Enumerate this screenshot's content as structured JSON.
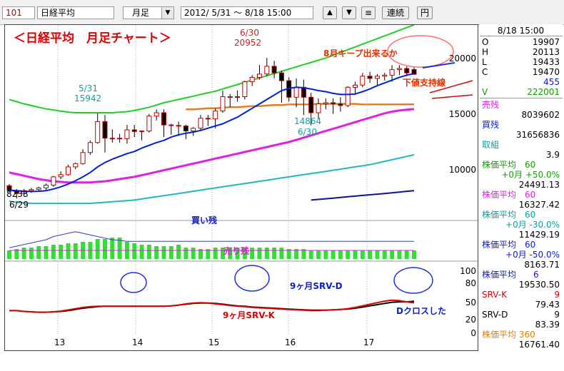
{
  "toolbar": {
    "code": "101",
    "name": "日経平均",
    "period": "月足",
    "range": "2012/ 5/31 ～ 8/18 15:00",
    "btn_up": "▲",
    "btn_down": "▼",
    "btn_menu": "≡",
    "btn_continuous": "連続",
    "btn_yen": "円"
  },
  "annotations": {
    "title": "＜日経平均　月足チャート＞",
    "keep_note": "8月キープ出来るか",
    "support_note": "下値支持線",
    "kaizan": "買い残",
    "urizan": "売り残",
    "srvd": "9ヶ月SRV-D",
    "srvk": "9ヶ月SRV-K",
    "dcross": "Dクロスした"
  },
  "chart_data": {
    "type": "candlestick",
    "x_ticks": [
      "13",
      "14",
      "15",
      "16",
      "17"
    ],
    "y_ticks_main": [
      "20000",
      "15000",
      "10000"
    ],
    "y_ticks_osc": [
      "100",
      "80",
      "50",
      "20",
      "0"
    ],
    "point_labels": [
      {
        "text": "8238",
        "value": 8238
      },
      {
        "text": "6/29",
        "value": "6/29"
      },
      {
        "text": "5/31",
        "value": "5/31"
      },
      {
        "text": "15942",
        "value": 15942
      },
      {
        "text": "6/30",
        "value": "6/30"
      },
      {
        "text": "20952",
        "value": 20952
      },
      {
        "text": "14864",
        "value": 14864
      },
      {
        "text": "6/30",
        "value": "6/30"
      }
    ],
    "candles": [
      [
        9400,
        9550,
        8780,
        8950
      ],
      [
        8950,
        9100,
        8238,
        8700
      ],
      [
        8700,
        9100,
        8600,
        8950
      ],
      [
        8950,
        9200,
        8750,
        9050
      ],
      [
        9050,
        9300,
        8900,
        9200
      ],
      [
        9200,
        9600,
        9000,
        9450
      ],
      [
        9450,
        10300,
        9300,
        10200
      ],
      [
        10200,
        10700,
        10000,
        10400
      ],
      [
        10400,
        11300,
        10300,
        11100
      ],
      [
        11100,
        11500,
        10900,
        11400
      ],
      [
        11400,
        12700,
        11300,
        12400
      ],
      [
        12400,
        13500,
        12200,
        13300
      ],
      [
        13300,
        15942,
        13200,
        15200
      ],
      [
        15200,
        15800,
        12400,
        13700
      ],
      [
        13700,
        14500,
        13300,
        13700
      ],
      [
        13700,
        14100,
        13300,
        13650
      ],
      [
        13650,
        14900,
        13200,
        14450
      ],
      [
        14450,
        14900,
        13800,
        14300
      ],
      [
        14300,
        14400,
        13500,
        14350
      ],
      [
        14350,
        15900,
        14200,
        15700
      ],
      [
        15700,
        16300,
        15300,
        16000
      ],
      [
        16000,
        16300,
        13800,
        14900
      ],
      [
        14900,
        15000,
        14000,
        14850
      ],
      [
        14850,
        15200,
        13900,
        14800
      ],
      [
        14800,
        14900,
        13600,
        14350
      ],
      [
        14350,
        14700,
        13900,
        14600
      ],
      [
        14600,
        15800,
        14400,
        15500
      ],
      [
        15500,
        15800,
        14800,
        15450
      ],
      [
        15450,
        16400,
        14600,
        16150
      ],
      [
        16150,
        18000,
        16000,
        17450
      ],
      [
        17450,
        17700,
        16500,
        17450
      ],
      [
        17450,
        18000,
        17000,
        17450
      ],
      [
        17450,
        18900,
        17200,
        18800
      ],
      [
        18800,
        19400,
        18400,
        19200
      ],
      [
        19200,
        20300,
        19000,
        19500
      ],
      [
        19500,
        20952,
        19300,
        20200
      ],
      [
        20200,
        20700,
        19100,
        19600
      ],
      [
        19600,
        19800,
        16900,
        18900
      ],
      [
        18900,
        19200,
        17000,
        17400
      ],
      [
        17400,
        19100,
        16500,
        18300
      ],
      [
        18300,
        19000,
        15800,
        17400
      ],
      [
        17400,
        17800,
        14864,
        16000
      ],
      [
        16000,
        17300,
        15400,
        16800
      ],
      [
        16800,
        17300,
        16300,
        16900
      ],
      [
        16900,
        17300,
        15900,
        16800
      ],
      [
        16800,
        17400,
        16100,
        16650
      ],
      [
        16650,
        18400,
        16500,
        18300
      ],
      [
        18300,
        18800,
        17600,
        18500
      ],
      [
        18500,
        19600,
        18300,
        19300
      ],
      [
        19300,
        19700,
        18700,
        19100
      ],
      [
        19100,
        19500,
        18500,
        19300
      ],
      [
        19300,
        19600,
        18900,
        19400
      ],
      [
        19400,
        20300,
        18800,
        19900
      ],
      [
        19900,
        20300,
        19400,
        20000
      ],
      [
        20000,
        20200,
        19300,
        19600
      ],
      [
        19907,
        20113,
        19433,
        19470
      ]
    ],
    "ma_blue": [
      9000,
      8950,
      8900,
      8880,
      8900,
      8950,
      9100,
      9300,
      9550,
      9850,
      10200,
      10600,
      11100,
      11500,
      11800,
      12050,
      12300,
      12500,
      12800,
      13050,
      13300,
      13500,
      13800,
      14000,
      14150,
      14250,
      14400,
      14600,
      14800,
      15000,
      15300,
      15600,
      16000,
      16400,
      16800,
      17200,
      17600,
      18000,
      18200,
      18300,
      18250,
      18150,
      18000,
      17900,
      17750,
      17650,
      17650,
      17700,
      17900,
      18150,
      18450,
      18700,
      18950,
      19200,
      19400,
      19530
    ],
    "ma_green": [
      17200,
      17000,
      16800,
      16650,
      16500,
      16350,
      16250,
      16150,
      16050,
      16000,
      16000,
      16000,
      16000,
      16000,
      16000,
      16050,
      16100,
      16200,
      16350,
      16500,
      16700,
      16900,
      17050,
      17200,
      17350,
      17500,
      17650,
      17800,
      17950,
      18150,
      18350,
      18550,
      18750,
      18950,
      19150,
      19350,
      19550,
      19750,
      19950,
      20150,
      20350,
      20550,
      20750,
      20950,
      21200,
      21450,
      21700,
      21950,
      22200,
      22450,
      22700,
      22950,
      23200,
      23450,
      23700,
      23950
    ],
    "ma_orange": [
      null,
      null,
      null,
      null,
      null,
      null,
      null,
      null,
      null,
      null,
      null,
      null,
      null,
      null,
      null,
      null,
      null,
      null,
      null,
      null,
      null,
      null,
      null,
      null,
      16300,
      16300,
      16350,
      16400,
      16400,
      16450,
      16500,
      16500,
      16550,
      16600,
      16600,
      16650,
      16700,
      16700,
      16750,
      16750,
      16750,
      16750,
      16800,
      16800,
      16800,
      16800,
      16800,
      16800,
      16750,
      16750,
      16750,
      16750,
      16750,
      16750,
      16760,
      16761
    ],
    "ma_magenta": [
      10600,
      10450,
      10300,
      10150,
      10000,
      9900,
      9800,
      9750,
      9700,
      9700,
      9700,
      9700,
      9750,
      9800,
      9900,
      10000,
      10100,
      10200,
      10350,
      10500,
      10650,
      10800,
      10950,
      11100,
      11250,
      11400,
      11550,
      11700,
      11850,
      12000,
      12150,
      12300,
      12450,
      12600,
      12750,
      12900,
      13050,
      13200,
      13350,
      13550,
      13750,
      13950,
      14150,
      14350,
      14550,
      14750,
      14950,
      15150,
      15350,
      15550,
      15750,
      15950,
      16100,
      16200,
      16270,
      16327
    ],
    "ma_teal": [
      8000,
      7900,
      7850,
      7800,
      7800,
      7800,
      7800,
      7800,
      7800,
      7800,
      7800,
      7800,
      7850,
      7900,
      7950,
      8000,
      8050,
      8100,
      8200,
      8300,
      8400,
      8500,
      8600,
      8700,
      8800,
      8900,
      9000,
      9100,
      9200,
      9300,
      9400,
      9500,
      9600,
      9700,
      9800,
      9900,
      10000,
      10100,
      10200,
      10300,
      10400,
      10500,
      10600,
      10700,
      10800,
      10900,
      11000,
      11100,
      11200,
      11300,
      11450,
      11600,
      11750,
      11900,
      12050,
      12200
    ],
    "ma_navy": [
      null,
      null,
      null,
      null,
      null,
      null,
      null,
      null,
      null,
      null,
      null,
      null,
      null,
      null,
      null,
      null,
      null,
      null,
      null,
      null,
      null,
      null,
      null,
      null,
      null,
      null,
      null,
      null,
      null,
      null,
      null,
      null,
      null,
      null,
      null,
      null,
      null,
      null,
      null,
      null,
      null,
      8100,
      8160,
      8220,
      8280,
      8340,
      8400,
      8460,
      8520,
      8580,
      8640,
      8700,
      8760,
      8820,
      8900,
      8950
    ],
    "vol_green": [
      30,
      35,
      40,
      40,
      45,
      45,
      50,
      50,
      55,
      55,
      60,
      60,
      70,
      70,
      75,
      75,
      60,
      55,
      50,
      50,
      45,
      45,
      45,
      50,
      40,
      40,
      35,
      35,
      40,
      40,
      40,
      40,
      40,
      40,
      40,
      40,
      40,
      40,
      35,
      35,
      35,
      30,
      30,
      30,
      30,
      30,
      30,
      30,
      30,
      30,
      30,
      30,
      30,
      30,
      30,
      30
    ],
    "vol_red": [
      30,
      30,
      30,
      30,
      30,
      30,
      30,
      30,
      30,
      30,
      30,
      30,
      30,
      30,
      30,
      30,
      30,
      30,
      30,
      30,
      30,
      30,
      30,
      30,
      30,
      30,
      30,
      30,
      30,
      30,
      30,
      30,
      30,
      30,
      30,
      30,
      30,
      30,
      30,
      30,
      30,
      30,
      30,
      30,
      30,
      30,
      30,
      30,
      30,
      30,
      30,
      30,
      30,
      30,
      30,
      30
    ],
    "kaizan_line": [
      35,
      40,
      45,
      50,
      55,
      60,
      70,
      75,
      80,
      85,
      80,
      75,
      70,
      65,
      60,
      58,
      55,
      55,
      55,
      55,
      55,
      55,
      55,
      55,
      55,
      55,
      55,
      55,
      55,
      55,
      55,
      55,
      55,
      55,
      55,
      55,
      55,
      55,
      55,
      55,
      55,
      55,
      55,
      55,
      55,
      55,
      55,
      55,
      55,
      55,
      55,
      55,
      55,
      55,
      55,
      55
    ],
    "uri_line": [
      30,
      30,
      30,
      30,
      30,
      30,
      30,
      30,
      30,
      30,
      30,
      30,
      30,
      30,
      30,
      30,
      30,
      30,
      30,
      30,
      30,
      30,
      30,
      30,
      30,
      30,
      30,
      30,
      30,
      30,
      30,
      30,
      30,
      30,
      30,
      30,
      30,
      30,
      30,
      30,
      30,
      30,
      30,
      30,
      30,
      30,
      30,
      30,
      30,
      30,
      30,
      30,
      30,
      30,
      30,
      30
    ],
    "srv_k": [
      60,
      60,
      58,
      57,
      56,
      56,
      57,
      59,
      62,
      65,
      68,
      70,
      71,
      71,
      71,
      71,
      71,
      71,
      71,
      71,
      71,
      71,
      72,
      74,
      77,
      79,
      80,
      79,
      77,
      75,
      73,
      71,
      70,
      68,
      67,
      66,
      65,
      64,
      63,
      62,
      61,
      60,
      60,
      61,
      62,
      63,
      65,
      68,
      72,
      76,
      80,
      84,
      86,
      85,
      82,
      79.43
    ],
    "srv_d": [
      60,
      60,
      58,
      57,
      56,
      56,
      57,
      58,
      60,
      63,
      66,
      68,
      70,
      71,
      71,
      71,
      71,
      71,
      71,
      71,
      71,
      71,
      72,
      74,
      76,
      78,
      79,
      79,
      78,
      76,
      74,
      72,
      71,
      69,
      68,
      67,
      66,
      65,
      64,
      63,
      62,
      61,
      61,
      61,
      62,
      63,
      64,
      66,
      69,
      72,
      75,
      78,
      81,
      82,
      82,
      83.39
    ]
  },
  "sidebar": {
    "date": "8/18 15:00",
    "O": "19907",
    "H": "20113",
    "L": "19433",
    "C": "19470",
    "change": "455",
    "V": "222001",
    "labels": {
      "O": "O",
      "H": "H",
      "L": "L",
      "C": "C",
      "V": "V"
    },
    "urizan_label": "売残",
    "urizan_val": "8039602",
    "kaizan_label": "買残",
    "kaizan_val": "31656836",
    "torikumi_label": "取組",
    "torikumi_val": "3.9",
    "ma60_p50_label": "株価平均　60",
    "ma60_p50_sub": "+0月 +50.0%",
    "ma60_p50_val": "24491.13",
    "ma60_label": "株価平均　60",
    "ma60_val": "16327.42",
    "ma60_m30_label": "株価平均　60",
    "ma60_m30_sub": "+0月 -30.0%",
    "ma60_m30_val": "11429.19",
    "ma60_m50_label": "株価平均　60",
    "ma60_m50_sub": "+0月 -50.0%",
    "ma60_m50_val": "8163.71",
    "ma6_label": "株価平均　　6",
    "ma6_val": "19530.50",
    "srvk_label": "SRV-K",
    "srvk_num": "9",
    "srvk_val": "79.43",
    "srvd_label": "SRV-D",
    "srvd_num": "9",
    "srvd_val": "83.39",
    "ma360_label": "株価平均 360",
    "ma360_val": "16761.40"
  }
}
